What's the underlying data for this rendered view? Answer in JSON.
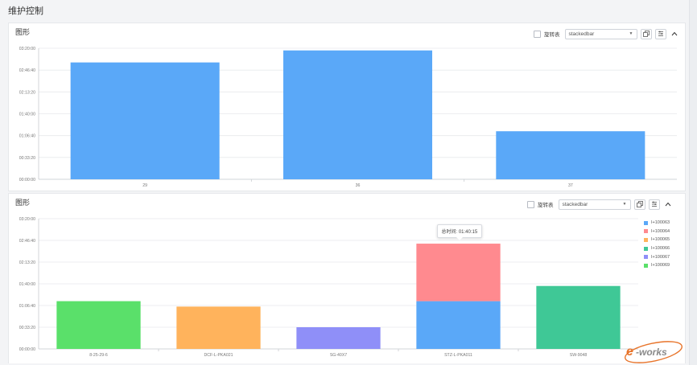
{
  "page": {
    "title": "维护控制"
  },
  "panel1": {
    "title": "图形",
    "toolbar": {
      "pivot_label": "旋转表",
      "chart_select": "stackedbar"
    }
  },
  "panel2": {
    "title": "图形",
    "toolbar": {
      "pivot_label": "旋转表",
      "chart_select": "stackedbar"
    },
    "tooltip": "总时间: 01:40:15"
  },
  "logo": {
    "text": "e-works"
  },
  "colors": {
    "bar_blue": "#5aa8f8",
    "bar_red": "#ff8a8f",
    "bar_orange": "#ffb35c",
    "bar_teal": "#3fc896",
    "bar_purple": "#8f8ff8",
    "bar_green": "#5ae06a",
    "grid": "#e7e9ec",
    "axis_text": "#777777",
    "logo_orange": "#e8742a"
  },
  "chart_data": [
    {
      "type": "bar",
      "categories": [
        "29",
        "36",
        "37"
      ],
      "series": [
        {
          "values": [
            10700,
            11800,
            4400
          ],
          "color": "#5aa8f8"
        }
      ],
      "ylim": [
        0,
        12000
      ],
      "yticks": [
        "00:00:00",
        "00:33:20",
        "01:06:40",
        "01:40:00",
        "02:13:20",
        "02:46:40",
        "03:20:00"
      ],
      "grid": true
    },
    {
      "type": "bar",
      "stacked": true,
      "categories": [
        "8-25-29-6",
        "DCF-L-PKA021",
        "SG-40X7",
        "STZ-L-PKA011",
        "SW-9048"
      ],
      "series": [
        {
          "name": "I+100063",
          "values": [
            0,
            0,
            0,
            4400,
            0
          ],
          "color": "#5aa8f8"
        },
        {
          "name": "I+100064",
          "values": [
            0,
            0,
            0,
            5300,
            0
          ],
          "color": "#ff8a8f"
        },
        {
          "name": "I+100065",
          "values": [
            0,
            3900,
            0,
            0,
            0
          ],
          "color": "#ffb35c"
        },
        {
          "name": "I+100066",
          "values": [
            0,
            0,
            0,
            0,
            5800
          ],
          "color": "#3fc896"
        },
        {
          "name": "I+100067",
          "values": [
            0,
            0,
            2000,
            0,
            0
          ],
          "color": "#8f8ff8"
        },
        {
          "name": "I+100069",
          "values": [
            4400,
            0,
            0,
            0,
            0
          ],
          "color": "#5ae06a"
        }
      ],
      "ylim": [
        0,
        12000
      ],
      "yticks": [
        "00:00:00",
        "00:33:20",
        "01:06:40",
        "01:40:00",
        "02:13:20",
        "02:46:40",
        "03:20:00"
      ],
      "grid": true,
      "legend": "right"
    }
  ]
}
